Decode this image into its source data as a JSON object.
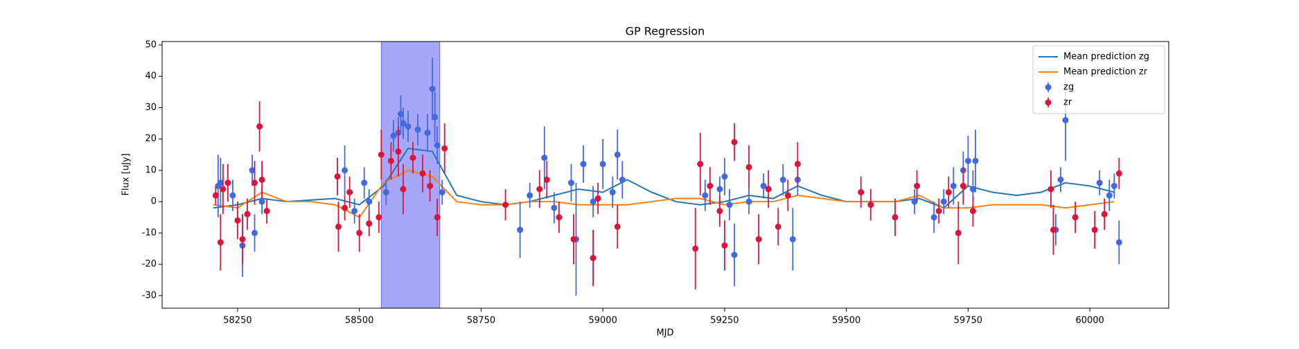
{
  "chart_data": {
    "type": "errorbar",
    "title": "GP Regression",
    "xlabel": "MJD",
    "ylabel": "Flux [uJy]",
    "xlim": [
      58095,
      60162
    ],
    "ylim": [
      -34,
      51.1
    ],
    "xticks": [
      58250,
      58500,
      58750,
      59000,
      59250,
      59500,
      59750,
      60000
    ],
    "yticks": [
      -30,
      -20,
      -10,
      0,
      10,
      20,
      30,
      40,
      50
    ],
    "axvspan": {
      "range": [
        58545,
        58665
      ],
      "color": "#a6a6fa"
    },
    "legend": "upper right",
    "series": [
      {
        "name": "Mean prediction zg",
        "type": "line",
        "color": "#1f77b4",
        "x": [
          58200,
          58250,
          58300,
          58350,
          58400,
          58450,
          58500,
          58550,
          58600,
          58650,
          58700,
          58750,
          58800,
          58850,
          58900,
          58950,
          59000,
          59050,
          59100,
          59150,
          59200,
          59250,
          59300,
          59350,
          59400,
          59450,
          59500,
          59550,
          59600,
          59650,
          59700,
          59750,
          59800,
          59850,
          59900,
          59950,
          60000,
          60050
        ],
        "values": [
          -2,
          -1,
          1,
          0,
          0.5,
          1,
          -1,
          5,
          17,
          16,
          2,
          0,
          -1,
          0,
          2,
          4,
          3,
          7,
          3,
          0,
          -1,
          0,
          2,
          1,
          5,
          2,
          0,
          0,
          0,
          1,
          -2,
          5,
          3,
          2,
          3,
          6,
          5,
          3
        ]
      },
      {
        "name": "Mean prediction zr",
        "type": "line",
        "color": "#ff7f0e",
        "x": [
          58200,
          58250,
          58300,
          58350,
          58400,
          58450,
          58500,
          58550,
          58600,
          58650,
          58700,
          58750,
          58800,
          58850,
          58900,
          58950,
          59000,
          59050,
          59100,
          59150,
          59200,
          59250,
          59300,
          59350,
          59400,
          59450,
          59500,
          59550,
          59600,
          59650,
          59700,
          59750,
          59800,
          59850,
          59900,
          59950,
          60000,
          60050
        ],
        "values": [
          -1,
          -2,
          3,
          0,
          0,
          -1,
          -5,
          6,
          10,
          8,
          0,
          -1,
          -1,
          0,
          0,
          -1,
          -1,
          -1,
          0,
          1,
          1,
          -1,
          0,
          0,
          2,
          1,
          0,
          0,
          0,
          2,
          -2,
          -2,
          -1,
          -1,
          -1,
          -2,
          -1,
          0
        ]
      },
      {
        "name": "zg",
        "type": "errorbar",
        "color": "#4169e1",
        "x": [
          58210,
          58215,
          58240,
          58260,
          58280,
          58285,
          58300,
          58470,
          58490,
          58510,
          58520,
          58555,
          58570,
          58580,
          58585,
          58590,
          58600,
          58620,
          58640,
          58650,
          58655,
          58660,
          58670,
          58830,
          58850,
          58880,
          58900,
          58935,
          58945,
          58960,
          58980,
          59000,
          59020,
          59030,
          59040,
          59210,
          59240,
          59250,
          59260,
          59270,
          59300,
          59330,
          59370,
          59390,
          59400,
          59640,
          59680,
          59700,
          59720,
          59740,
          59750,
          59760,
          59765,
          59930,
          59940,
          59950,
          60020,
          60040,
          60050,
          60060
        ],
        "values": [
          5,
          6,
          2,
          -14,
          10,
          -10,
          0,
          10,
          -3,
          6,
          0,
          3,
          21,
          22,
          28,
          25,
          24,
          23,
          22,
          36,
          27,
          18,
          3,
          -9,
          2,
          14,
          -2,
          6,
          -12,
          12,
          0,
          12,
          3,
          15,
          7,
          2,
          4,
          8,
          -1,
          -17,
          0,
          5,
          7,
          -12,
          7,
          0,
          -5,
          0,
          5,
          10,
          13,
          4,
          13,
          -9,
          7,
          26,
          6,
          2,
          5,
          -13
        ],
        "errors": [
          10,
          8,
          5,
          10,
          5,
          6,
          4,
          8,
          4,
          5,
          4,
          4,
          5,
          5,
          6,
          5,
          5,
          5,
          6,
          10,
          8,
          6,
          4,
          9,
          4,
          10,
          5,
          6,
          18,
          6,
          5,
          8,
          5,
          8,
          6,
          5,
          4,
          6,
          5,
          10,
          4,
          4,
          5,
          10,
          5,
          4,
          5,
          4,
          6,
          6,
          8,
          6,
          10,
          5,
          4,
          13,
          4,
          5,
          4,
          7
        ]
      },
      {
        "name": "zr",
        "type": "errorbar",
        "color": "#dc143c",
        "x": [
          58205,
          58215,
          58220,
          58230,
          58250,
          58260,
          58270,
          58285,
          58295,
          58300,
          58310,
          58455,
          58457,
          58470,
          58480,
          58500,
          58520,
          58540,
          58545,
          58565,
          58580,
          58590,
          58610,
          58630,
          58645,
          58660,
          58675,
          58800,
          58870,
          58885,
          58910,
          58940,
          58980,
          58990,
          59030,
          59190,
          59200,
          59220,
          59240,
          59250,
          59270,
          59300,
          59320,
          59340,
          59360,
          59380,
          59400,
          59530,
          59550,
          59600,
          59645,
          59690,
          59710,
          59730,
          59740,
          59760,
          59920,
          59925,
          59970,
          60010,
          60030,
          60060
        ],
        "values": [
          2,
          -13,
          4,
          6,
          -6,
          -12,
          -4,
          6,
          24,
          7,
          -3,
          8,
          -8,
          -2,
          3,
          -10,
          -7,
          -5,
          15,
          13,
          16,
          4,
          14,
          9,
          5,
          -5,
          17,
          -1,
          4,
          7,
          -5,
          -12,
          -18,
          1,
          -8,
          -15,
          12,
          5,
          -3,
          -14,
          19,
          11,
          -12,
          4,
          -8,
          2,
          12,
          3,
          -1,
          -5,
          5,
          -3,
          3,
          -10,
          5,
          -3,
          4,
          -9,
          -5,
          -9,
          -4,
          9
        ],
        "errors": [
          3,
          9,
          8,
          6,
          6,
          8,
          5,
          7,
          8,
          6,
          4,
          6,
          8,
          4,
          5,
          6,
          4,
          5,
          8,
          6,
          8,
          8,
          5,
          6,
          5,
          6,
          8,
          5,
          6,
          6,
          5,
          8,
          9,
          5,
          7,
          13,
          10,
          6,
          5,
          8,
          6,
          7,
          8,
          6,
          6,
          5,
          7,
          5,
          5,
          6,
          5,
          4,
          5,
          10,
          6,
          5,
          6,
          8,
          5,
          6,
          5,
          5
        ]
      }
    ]
  }
}
